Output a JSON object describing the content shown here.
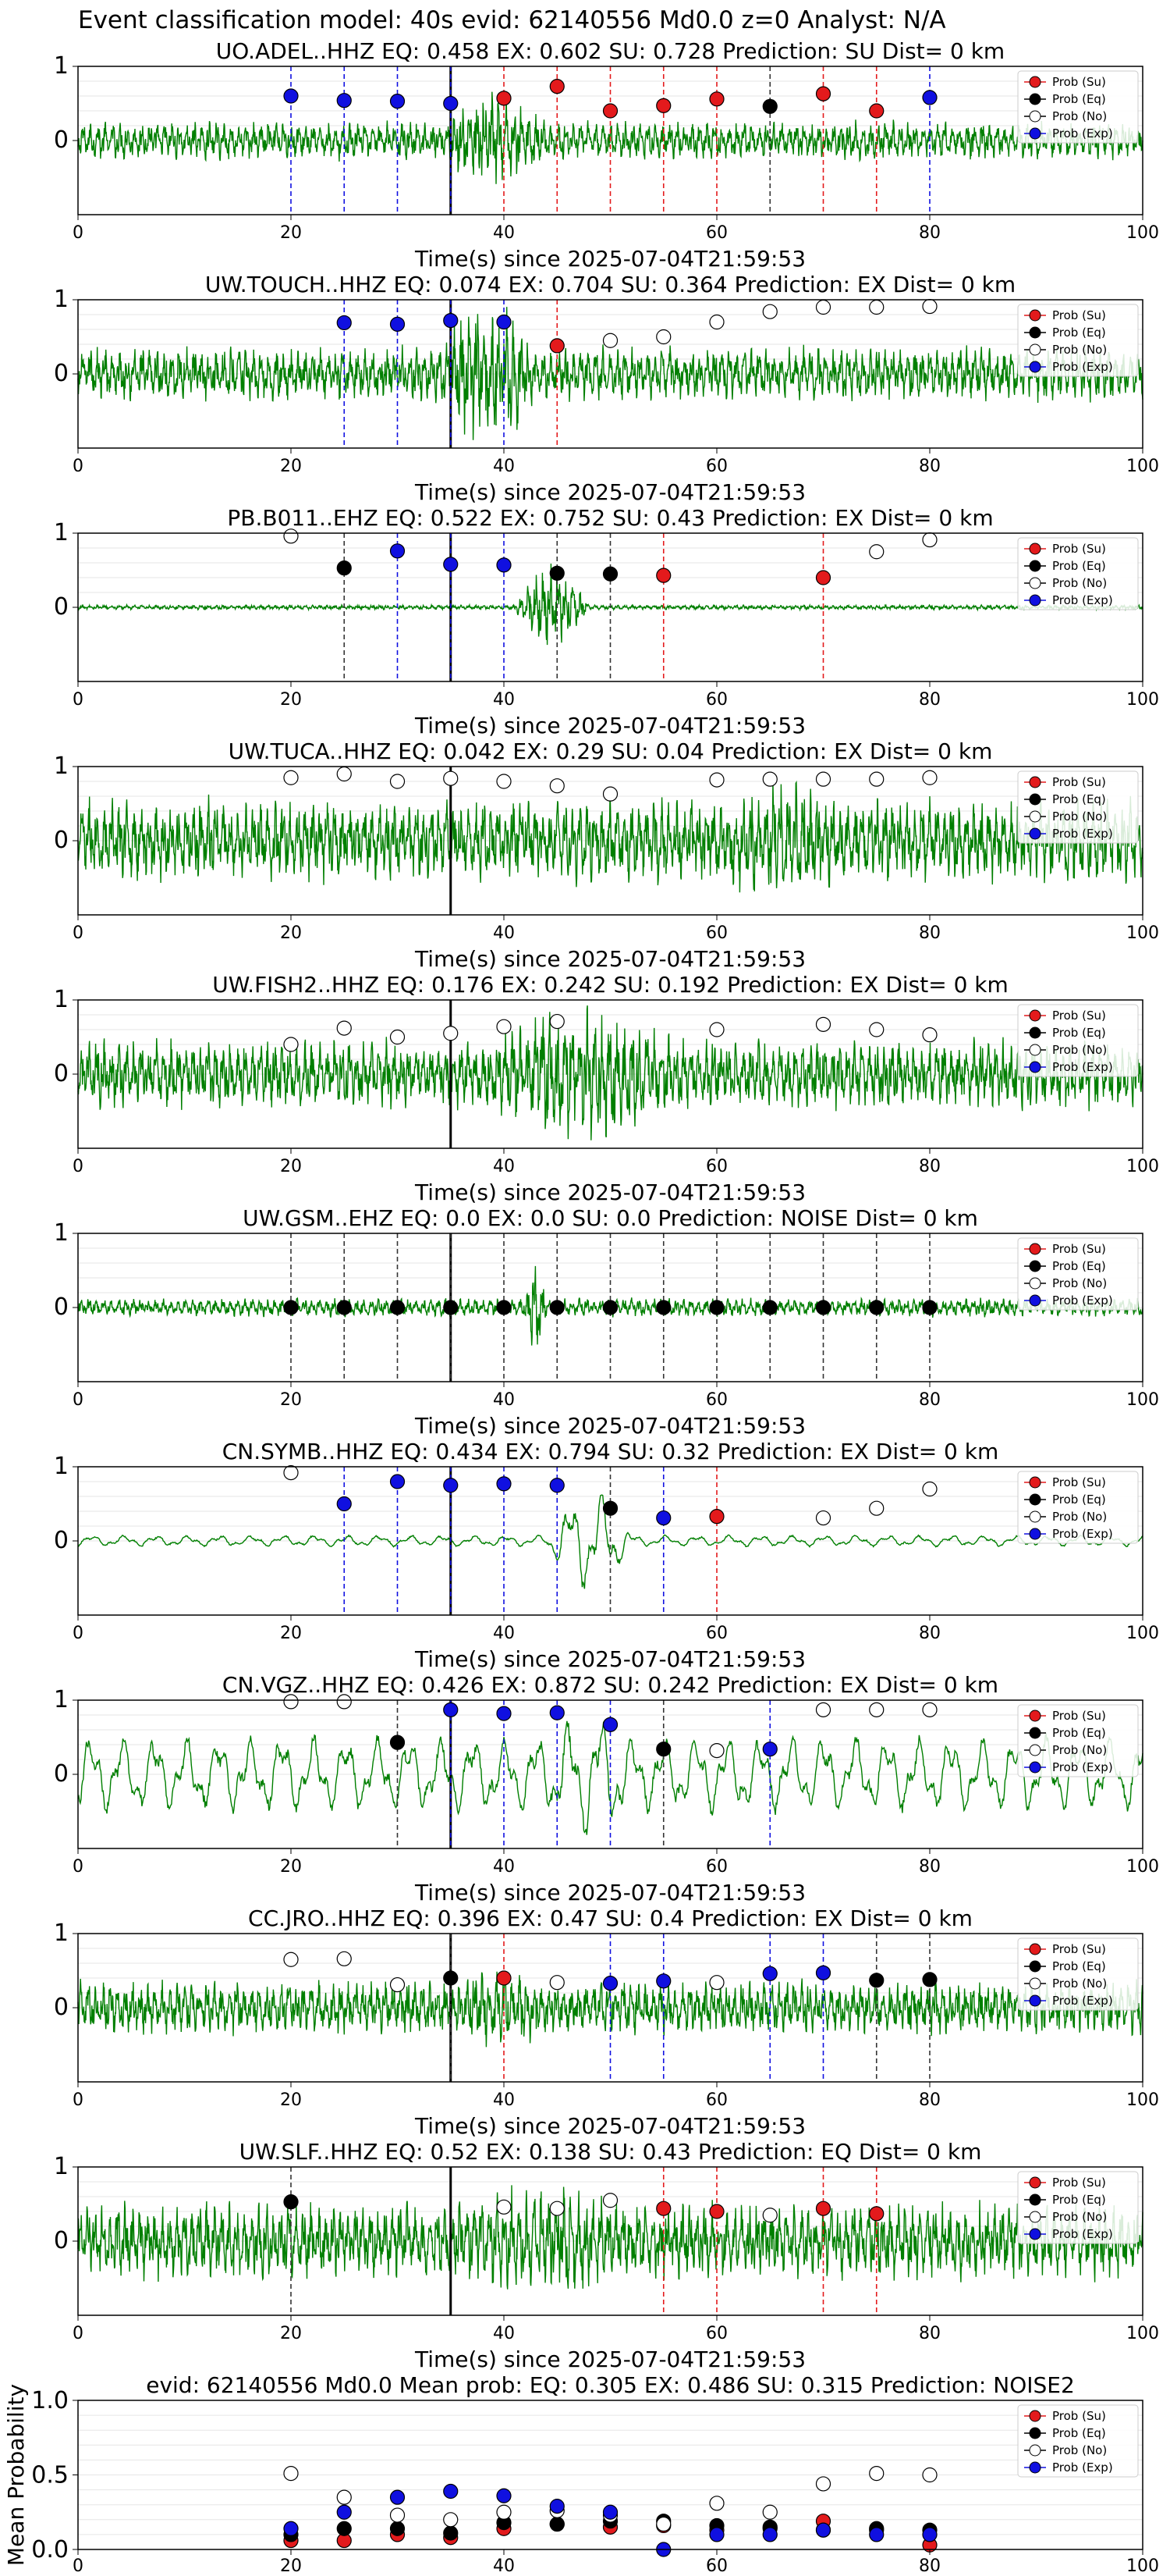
{
  "suptitle": "Event classification model: 40s evid: 62140556 Md0.0 z=0 Analyst: N/A",
  "colors": {
    "su": "#e31a1c",
    "eq": "#000000",
    "no": "#ffffff",
    "exp": "#1010e0",
    "wave": "#007f00"
  },
  "legend_labels": [
    "Prob (Su)",
    "Prob (Eq)",
    "Prob (No)",
    "Prob (Exp)"
  ],
  "xlabel": "Time(s) since 2025-07-04T21:59:53",
  "chart_data": [
    {
      "type": "line+scatter",
      "title": "UO.ADEL..HHZ   EQ: 0.458   EX: 0.602   SU: 0.728   Prediction: SU    Dist= 0 km",
      "xlim": [
        0,
        100
      ],
      "ylim": [
        -1,
        1
      ],
      "xticks": [
        0,
        20,
        40,
        60,
        80,
        100
      ],
      "yticks": [
        0,
        1
      ],
      "xlabel": "Time(s) since 2025-07-04T21:59:53",
      "legend": "top-right",
      "grid": true,
      "arrival": 35,
      "wave": {
        "amp": 0.25,
        "burst": [
          34,
          44
        ],
        "burst_amp": 0.6,
        "style": "broadband"
      },
      "points": [
        {
          "t": 20,
          "p": 0.6,
          "c": "exp"
        },
        {
          "t": 25,
          "p": 0.54,
          "c": "exp"
        },
        {
          "t": 30,
          "p": 0.53,
          "c": "exp"
        },
        {
          "t": 35,
          "p": 0.5,
          "c": "exp"
        },
        {
          "t": 40,
          "p": 0.57,
          "c": "su"
        },
        {
          "t": 45,
          "p": 0.73,
          "c": "su"
        },
        {
          "t": 50,
          "p": 0.4,
          "c": "su"
        },
        {
          "t": 55,
          "p": 0.47,
          "c": "su"
        },
        {
          "t": 60,
          "p": 0.56,
          "c": "su"
        },
        {
          "t": 65,
          "p": 0.46,
          "c": "eq"
        },
        {
          "t": 70,
          "p": 0.63,
          "c": "su"
        },
        {
          "t": 75,
          "p": 0.4,
          "c": "su"
        },
        {
          "t": 80,
          "p": 0.58,
          "c": "exp"
        }
      ]
    },
    {
      "type": "line+scatter",
      "title": "UW.TOUCH..HHZ   EQ: 0.074   EX: 0.704   SU: 0.364   Prediction: EX    Dist= 0 km",
      "xlim": [
        0,
        100
      ],
      "ylim": [
        -1,
        1
      ],
      "xticks": [
        0,
        20,
        40,
        60,
        80,
        100
      ],
      "yticks": [
        0,
        1
      ],
      "xlabel": "Time(s) since 2025-07-04T21:59:53",
      "legend": "top-right",
      "grid": true,
      "arrival": 35,
      "wave": {
        "amp": 0.35,
        "burst": [
          34,
          43
        ],
        "burst_amp": 1.0,
        "style": "broadband"
      },
      "points": [
        {
          "t": 25,
          "p": 0.69,
          "c": "exp"
        },
        {
          "t": 30,
          "p": 0.67,
          "c": "exp"
        },
        {
          "t": 35,
          "p": 0.72,
          "c": "exp"
        },
        {
          "t": 40,
          "p": 0.7,
          "c": "exp"
        },
        {
          "t": 45,
          "p": 0.38,
          "c": "su"
        },
        {
          "t": 50,
          "p": 0.45,
          "c": "no"
        },
        {
          "t": 55,
          "p": 0.5,
          "c": "no"
        },
        {
          "t": 60,
          "p": 0.7,
          "c": "no"
        },
        {
          "t": 65,
          "p": 0.84,
          "c": "no"
        },
        {
          "t": 70,
          "p": 0.9,
          "c": "no"
        },
        {
          "t": 75,
          "p": 0.9,
          "c": "no"
        },
        {
          "t": 80,
          "p": 0.91,
          "c": "no"
        }
      ]
    },
    {
      "type": "line+scatter",
      "title": "PB.B011..EHZ   EQ: 0.522   EX: 0.752   SU: 0.43   Prediction: EX    Dist= 0 km",
      "xlim": [
        0,
        100
      ],
      "ylim": [
        -1,
        1
      ],
      "xticks": [
        0,
        20,
        40,
        60,
        80,
        100
      ],
      "yticks": [
        0,
        1
      ],
      "xlabel": "Time(s) since 2025-07-04T21:59:53",
      "legend": "top-right",
      "grid": true,
      "arrival": 35,
      "wave": {
        "amp": 0.03,
        "burst": [
          41,
          48
        ],
        "burst_amp": 0.55,
        "style": "broadband"
      },
      "points": [
        {
          "t": 20,
          "p": 0.96,
          "c": "no"
        },
        {
          "t": 25,
          "p": 0.53,
          "c": "eq"
        },
        {
          "t": 30,
          "p": 0.76,
          "c": "exp"
        },
        {
          "t": 35,
          "p": 0.58,
          "c": "exp"
        },
        {
          "t": 40,
          "p": 0.57,
          "c": "exp"
        },
        {
          "t": 45,
          "p": 0.46,
          "c": "eq"
        },
        {
          "t": 50,
          "p": 0.45,
          "c": "eq"
        },
        {
          "t": 55,
          "p": 0.43,
          "c": "su"
        },
        {
          "t": 70,
          "p": 0.4,
          "c": "su"
        },
        {
          "t": 75,
          "p": 0.75,
          "c": "no"
        },
        {
          "t": 80,
          "p": 0.91,
          "c": "no"
        }
      ]
    },
    {
      "type": "line+scatter",
      "title": "UW.TUCA..HHZ   EQ: 0.042   EX: 0.29   SU: 0.04   Prediction: EX    Dist= 0 km",
      "xlim": [
        0,
        100
      ],
      "ylim": [
        -1,
        1
      ],
      "xticks": [
        0,
        20,
        40,
        60,
        80,
        100
      ],
      "yticks": [
        0,
        1
      ],
      "xlabel": "Time(s) since 2025-07-04T21:59:53",
      "legend": "top-right",
      "grid": true,
      "arrival": 35,
      "wave": {
        "amp": 0.55,
        "burst": [
          60,
          72
        ],
        "burst_amp": 0.75,
        "style": "broadband"
      },
      "points": [
        {
          "t": 20,
          "p": 0.85,
          "c": "no"
        },
        {
          "t": 25,
          "p": 0.9,
          "c": "no"
        },
        {
          "t": 30,
          "p": 0.8,
          "c": "no"
        },
        {
          "t": 35,
          "p": 0.84,
          "c": "no"
        },
        {
          "t": 40,
          "p": 0.8,
          "c": "no"
        },
        {
          "t": 45,
          "p": 0.74,
          "c": "no"
        },
        {
          "t": 50,
          "p": 0.63,
          "c": "no"
        },
        {
          "t": 60,
          "p": 0.82,
          "c": "no"
        },
        {
          "t": 65,
          "p": 0.83,
          "c": "no"
        },
        {
          "t": 70,
          "p": 0.83,
          "c": "no"
        },
        {
          "t": 75,
          "p": 0.83,
          "c": "no"
        },
        {
          "t": 80,
          "p": 0.85,
          "c": "no"
        }
      ]
    },
    {
      "type": "line+scatter",
      "title": "UW.FISH2..HHZ   EQ: 0.176   EX: 0.242   SU: 0.192   Prediction: EX    Dist= 0 km",
      "xlim": [
        0,
        100
      ],
      "ylim": [
        -1,
        1
      ],
      "xticks": [
        0,
        20,
        40,
        60,
        80,
        100
      ],
      "yticks": [
        0,
        1
      ],
      "xlabel": "Time(s) since 2025-07-04T21:59:53",
      "legend": "top-right",
      "grid": true,
      "arrival": 35,
      "wave": {
        "amp": 0.45,
        "burst": [
          38,
          56
        ],
        "burst_amp": 0.9,
        "style": "broadband"
      },
      "points": [
        {
          "t": 20,
          "p": 0.4,
          "c": "no"
        },
        {
          "t": 25,
          "p": 0.62,
          "c": "no"
        },
        {
          "t": 30,
          "p": 0.5,
          "c": "no"
        },
        {
          "t": 35,
          "p": 0.55,
          "c": "no"
        },
        {
          "t": 40,
          "p": 0.64,
          "c": "no"
        },
        {
          "t": 45,
          "p": 0.71,
          "c": "no"
        },
        {
          "t": 60,
          "p": 0.6,
          "c": "no"
        },
        {
          "t": 70,
          "p": 0.67,
          "c": "no"
        },
        {
          "t": 75,
          "p": 0.6,
          "c": "no"
        },
        {
          "t": 80,
          "p": 0.53,
          "c": "no"
        }
      ]
    },
    {
      "type": "line+scatter",
      "title": "UW.GSM..EHZ   EQ: 0.0   EX: 0.0   SU: 0.0   Prediction: NOISE    Dist= 0 km",
      "xlim": [
        0,
        100
      ],
      "ylim": [
        -1,
        1
      ],
      "xticks": [
        0,
        20,
        40,
        60,
        80,
        100
      ],
      "yticks": [
        0,
        1
      ],
      "xlabel": "Time(s) since 2025-07-04T21:59:53",
      "legend": "top-right",
      "grid": true,
      "arrival": 35,
      "wave": {
        "amp": 0.12,
        "burst": [
          42,
          44
        ],
        "burst_amp": 0.7,
        "style": "broadband"
      },
      "points": [
        {
          "t": 20,
          "p": 0.0,
          "c": "eq"
        },
        {
          "t": 25,
          "p": 0.0,
          "c": "eq"
        },
        {
          "t": 30,
          "p": 0.0,
          "c": "eq"
        },
        {
          "t": 35,
          "p": 0.0,
          "c": "eq"
        },
        {
          "t": 40,
          "p": 0.0,
          "c": "eq"
        },
        {
          "t": 45,
          "p": 0.0,
          "c": "eq"
        },
        {
          "t": 50,
          "p": 0.0,
          "c": "eq"
        },
        {
          "t": 55,
          "p": 0.0,
          "c": "eq"
        },
        {
          "t": 60,
          "p": 0.0,
          "c": "eq"
        },
        {
          "t": 65,
          "p": 0.0,
          "c": "eq"
        },
        {
          "t": 70,
          "p": 0.0,
          "c": "eq"
        },
        {
          "t": 75,
          "p": 0.0,
          "c": "eq"
        },
        {
          "t": 80,
          "p": 0.0,
          "c": "eq"
        }
      ]
    },
    {
      "type": "line+scatter",
      "title": "CN.SYMB..HHZ   EQ: 0.434   EX: 0.794   SU: 0.32   Prediction: EX    Dist= 0 km",
      "xlim": [
        0,
        100
      ],
      "ylim": [
        -1,
        1
      ],
      "xticks": [
        0,
        20,
        40,
        60,
        80,
        100
      ],
      "yticks": [
        0,
        1
      ],
      "xlabel": "Time(s) since 2025-07-04T21:59:53",
      "legend": "top-right",
      "grid": true,
      "arrival": 35,
      "wave": {
        "amp": 0.08,
        "burst": [
          44,
          52
        ],
        "burst_amp": 0.75,
        "style": "smooth"
      },
      "points": [
        {
          "t": 20,
          "p": 0.92,
          "c": "no"
        },
        {
          "t": 25,
          "p": 0.5,
          "c": "exp"
        },
        {
          "t": 30,
          "p": 0.8,
          "c": "exp"
        },
        {
          "t": 35,
          "p": 0.75,
          "c": "exp"
        },
        {
          "t": 40,
          "p": 0.77,
          "c": "exp"
        },
        {
          "t": 45,
          "p": 0.75,
          "c": "exp"
        },
        {
          "t": 50,
          "p": 0.44,
          "c": "eq"
        },
        {
          "t": 55,
          "p": 0.31,
          "c": "exp"
        },
        {
          "t": 60,
          "p": 0.33,
          "c": "su"
        },
        {
          "t": 70,
          "p": 0.31,
          "c": "no"
        },
        {
          "t": 75,
          "p": 0.44,
          "c": "no"
        },
        {
          "t": 80,
          "p": 0.7,
          "c": "no"
        }
      ]
    },
    {
      "type": "line+scatter",
      "title": "CN.VGZ..HHZ   EQ: 0.426   EX: 0.872   SU: 0.242   Prediction: EX    Dist= 0 km",
      "xlim": [
        0,
        100
      ],
      "ylim": [
        -1,
        1
      ],
      "xticks": [
        0,
        20,
        40,
        60,
        80,
        100
      ],
      "yticks": [
        0,
        1
      ],
      "xlabel": "Time(s) since 2025-07-04T21:59:53",
      "legend": "top-right",
      "grid": true,
      "arrival": 35,
      "wave": {
        "amp": 0.55,
        "burst": [
          44,
          52
        ],
        "burst_amp": 0.9,
        "style": "smooth"
      },
      "points": [
        {
          "t": 20,
          "p": 0.98,
          "c": "no"
        },
        {
          "t": 25,
          "p": 0.98,
          "c": "no"
        },
        {
          "t": 30,
          "p": 0.43,
          "c": "eq"
        },
        {
          "t": 35,
          "p": 0.87,
          "c": "exp"
        },
        {
          "t": 40,
          "p": 0.82,
          "c": "exp"
        },
        {
          "t": 45,
          "p": 0.83,
          "c": "exp"
        },
        {
          "t": 50,
          "p": 0.67,
          "c": "exp"
        },
        {
          "t": 55,
          "p": 0.34,
          "c": "eq"
        },
        {
          "t": 60,
          "p": 0.32,
          "c": "no"
        },
        {
          "t": 65,
          "p": 0.34,
          "c": "exp"
        },
        {
          "t": 70,
          "p": 0.87,
          "c": "no"
        },
        {
          "t": 75,
          "p": 0.87,
          "c": "no"
        },
        {
          "t": 80,
          "p": 0.87,
          "c": "no"
        }
      ]
    },
    {
      "type": "line+scatter",
      "title": "CC.JRO..HHZ   EQ: 0.396   EX: 0.47   SU: 0.4   Prediction: EX    Dist= 0 km",
      "xlim": [
        0,
        100
      ],
      "ylim": [
        -1,
        1
      ],
      "xticks": [
        0,
        20,
        40,
        60,
        80,
        100
      ],
      "yticks": [
        0,
        1
      ],
      "xlabel": "Time(s) since 2025-07-04T21:59:53",
      "legend": "top-right",
      "grid": true,
      "arrival": 35,
      "wave": {
        "amp": 0.35,
        "burst": [
          35,
          45
        ],
        "burst_amp": 0.5,
        "style": "broadband"
      },
      "points": [
        {
          "t": 20,
          "p": 0.65,
          "c": "no"
        },
        {
          "t": 25,
          "p": 0.66,
          "c": "no"
        },
        {
          "t": 30,
          "p": 0.31,
          "c": "no"
        },
        {
          "t": 35,
          "p": 0.4,
          "c": "eq"
        },
        {
          "t": 40,
          "p": 0.4,
          "c": "su"
        },
        {
          "t": 45,
          "p": 0.34,
          "c": "no"
        },
        {
          "t": 50,
          "p": 0.33,
          "c": "exp"
        },
        {
          "t": 55,
          "p": 0.36,
          "c": "exp"
        },
        {
          "t": 60,
          "p": 0.34,
          "c": "no"
        },
        {
          "t": 65,
          "p": 0.46,
          "c": "exp"
        },
        {
          "t": 70,
          "p": 0.47,
          "c": "exp"
        },
        {
          "t": 75,
          "p": 0.37,
          "c": "eq"
        },
        {
          "t": 80,
          "p": 0.38,
          "c": "eq"
        }
      ]
    },
    {
      "type": "line+scatter",
      "title": "UW.SLF..HHZ   EQ: 0.52   EX: 0.138   SU: 0.43   Prediction: EQ    Dist= 0 km",
      "xlim": [
        0,
        100
      ],
      "ylim": [
        -1,
        1
      ],
      "xticks": [
        0,
        20,
        40,
        60,
        80,
        100
      ],
      "yticks": [
        0,
        1
      ],
      "xlabel": "Time(s) since 2025-07-04T21:59:53",
      "legend": "top-right",
      "grid": true,
      "arrival": 35,
      "wave": {
        "amp": 0.5,
        "burst": [
          35,
          55
        ],
        "burst_amp": 0.7,
        "style": "broadband"
      },
      "points": [
        {
          "t": 20,
          "p": 0.53,
          "c": "eq"
        },
        {
          "t": 40,
          "p": 0.46,
          "c": "no"
        },
        {
          "t": 45,
          "p": 0.44,
          "c": "no"
        },
        {
          "t": 50,
          "p": 0.55,
          "c": "no"
        },
        {
          "t": 55,
          "p": 0.44,
          "c": "su"
        },
        {
          "t": 60,
          "p": 0.4,
          "c": "su"
        },
        {
          "t": 65,
          "p": 0.35,
          "c": "no"
        },
        {
          "t": 70,
          "p": 0.44,
          "c": "su"
        },
        {
          "t": 75,
          "p": 0.37,
          "c": "su"
        }
      ]
    }
  ],
  "mean_panel": {
    "type": "scatter",
    "title": "evid: 62140556   Md0.0   Mean prob:   EQ: 0.305   EX: 0.486   SU: 0.315   Prediction: NOISE2",
    "ylabel": "Mean Probability",
    "xlim": [
      0,
      100
    ],
    "ylim": [
      0,
      1
    ],
    "xticks": [
      0,
      20,
      40,
      60,
      80,
      100
    ],
    "yticks": [
      0.0,
      0.5,
      1.0
    ],
    "legend": "top-right",
    "grid": true,
    "t": [
      20,
      25,
      30,
      35,
      40,
      45,
      50,
      55,
      60,
      65,
      70,
      75,
      80
    ],
    "series": [
      {
        "name": "Prob (Su)",
        "c": "su",
        "values": [
          0.06,
          0.06,
          0.1,
          0.08,
          0.14,
          0.17,
          0.15,
          0.16,
          0.13,
          0.14,
          0.19,
          0.13,
          0.03
        ]
      },
      {
        "name": "Prob (Eq)",
        "c": "eq",
        "values": [
          0.1,
          0.14,
          0.14,
          0.11,
          0.18,
          0.17,
          0.19,
          0.19,
          0.16,
          0.15,
          0.13,
          0.14,
          0.13
        ]
      },
      {
        "name": "Prob (No)",
        "c": "no",
        "values": [
          0.51,
          0.35,
          0.23,
          0.2,
          0.25,
          0.26,
          0.23,
          0.17,
          0.31,
          0.25,
          0.44,
          0.51,
          0.5
        ]
      },
      {
        "name": "Prob (Exp)",
        "c": "exp",
        "values": [
          0.14,
          0.25,
          0.35,
          0.39,
          0.36,
          0.29,
          0.25,
          0.0,
          0.1,
          0.1,
          0.13,
          0.1,
          0.1
        ]
      }
    ]
  }
}
